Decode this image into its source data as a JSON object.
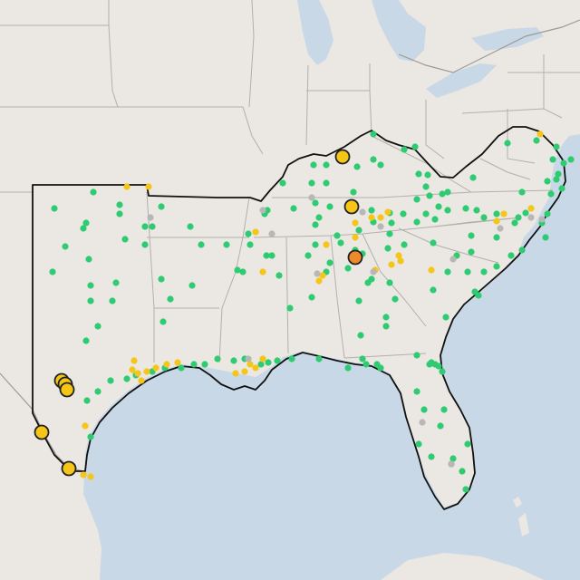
{
  "map": {
    "colors": {
      "water": "#c9d8e6",
      "land": "#ebe7e3",
      "land_outside": "#e4e0dc",
      "state_border": "#b3afab",
      "country_border": "#9e9a96",
      "region_outline": "#111111",
      "green": "#2ecc71",
      "yellow": "#f5c518",
      "orange": "#ee8a2a",
      "gray": "#b7b7b7",
      "marker_stroke": "#222222"
    },
    "markers": {
      "large": [
        {
          "name": "large-yellow-marker",
          "color": "yellow"
        },
        {
          "name": "large-yellow-marker",
          "color": "yellow"
        },
        {
          "name": "large-orange-marker",
          "color": "orange"
        },
        {
          "name": "large-yellow-marker",
          "color": "yellow"
        },
        {
          "name": "large-yellow-marker",
          "color": "yellow"
        },
        {
          "name": "large-yellow-marker",
          "color": "yellow"
        },
        {
          "name": "large-yellow-marker",
          "color": "yellow"
        },
        {
          "name": "large-yellow-marker",
          "color": "yellow"
        }
      ]
    }
  }
}
